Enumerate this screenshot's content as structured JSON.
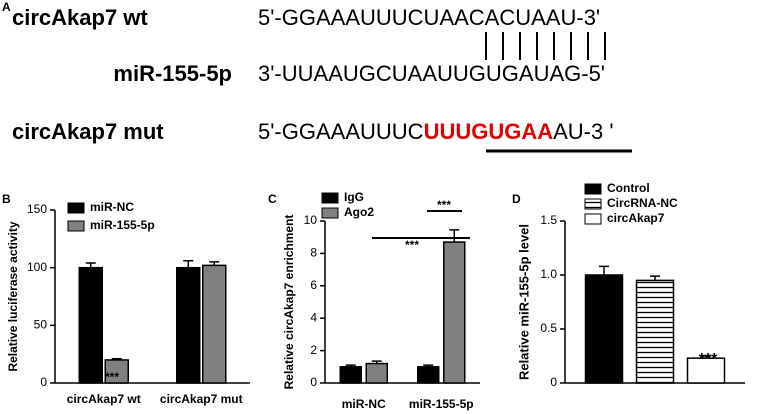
{
  "panel_a": {
    "label": "A",
    "rows": [
      {
        "name": "circAkap7 wt",
        "seq": "5'-GGAAAUUUCUAACACUAAU-3'"
      },
      {
        "name": "miR-155-5p",
        "seq": "3'-UUAAUGCUAAUUGUGAUAG-5'"
      },
      {
        "name": "circAkap7 mut",
        "seq_prefix": "5'-GGAAAUUUC",
        "seq_mut": "UUUGUGAA",
        "seq_suffix": "AU-3 '"
      }
    ]
  },
  "chart_data": [
    {
      "type": "bar",
      "label": "B",
      "ylabel": "Relative luciferase activity",
      "categories": [
        "circAkap7 wt",
        "circAkap7 mut"
      ],
      "series": [
        {
          "name": "miR-NC",
          "color": "#000000",
          "values": [
            100,
            100
          ],
          "errors": [
            4,
            6
          ]
        },
        {
          "name": "miR-155-5p",
          "color": "#808080",
          "values": [
            20,
            102
          ],
          "errors": [
            1,
            3
          ]
        }
      ],
      "ylim": [
        0,
        150
      ],
      "yticks": [
        0,
        50,
        100,
        150
      ],
      "annotations": [
        "***"
      ]
    },
    {
      "type": "bar",
      "label": "C",
      "ylabel": "Relative circAkap7 enrichment",
      "categories": [
        "miR-NC",
        "miR-155-5p"
      ],
      "series": [
        {
          "name": "IgG",
          "color": "#000000",
          "values": [
            1,
            1
          ],
          "errors": [
            0.1,
            0.1
          ]
        },
        {
          "name": "Ago2",
          "color": "#808080",
          "values": [
            1.2,
            8.7
          ],
          "errors": [
            0.15,
            0.75
          ]
        }
      ],
      "ylim": [
        0,
        10
      ],
      "yticks": [
        0,
        2,
        4,
        6,
        8,
        10
      ],
      "annotations": [
        "***",
        "***"
      ]
    },
    {
      "type": "bar",
      "label": "D",
      "ylabel": "Relative miR-155-5p level",
      "categories": [
        null
      ],
      "series": [
        {
          "name": "Control",
          "color": "#000000",
          "values": [
            1.0
          ],
          "errors": [
            0.08
          ]
        },
        {
          "name": "CircRNA-NC",
          "color": "#ffffff",
          "pattern": "hlines",
          "values": [
            0.95
          ],
          "errors": [
            0.04
          ]
        },
        {
          "name": "circAkap7",
          "color": "#ffffff",
          "values": [
            0.23
          ],
          "errors": [
            0.02
          ]
        }
      ],
      "ylim": [
        0,
        1.5
      ],
      "yticks": [
        0,
        0.5,
        {
          "value": 1,
          "label": "1.0"
        },
        1.5
      ],
      "annotations": [
        "***"
      ]
    }
  ]
}
